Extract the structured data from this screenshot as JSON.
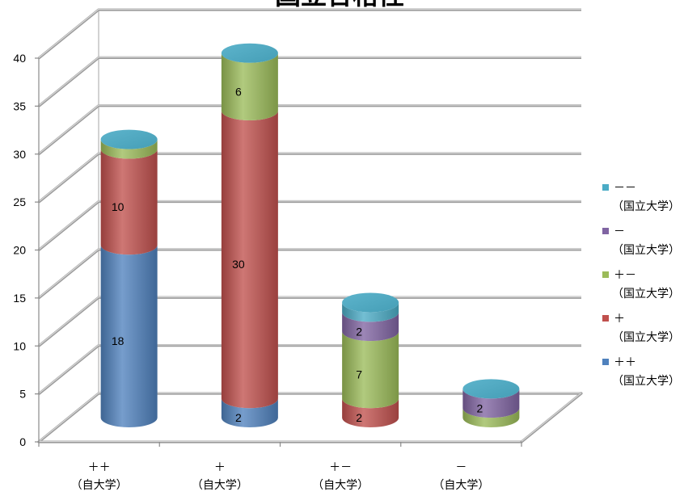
{
  "chart_data": {
    "type": "bar",
    "stacked": true,
    "title": "国立合格性",
    "categories": [
      [
        "＋＋",
        "（自大学）"
      ],
      [
        "＋",
        "（自大学）"
      ],
      [
        "＋－",
        "（自大学）"
      ],
      [
        "－",
        "（自大学）"
      ]
    ],
    "ylim": [
      0,
      40
    ],
    "yticks": [
      0,
      5,
      10,
      15,
      20,
      25,
      30,
      35,
      40
    ],
    "grid": true,
    "legend": "right",
    "series": [
      {
        "name": [
          "＋＋",
          "（国立大学）"
        ],
        "color": "#4F81BD",
        "values": [
          18,
          2,
          0,
          0
        ],
        "labels": [
          "18",
          "2",
          null,
          null
        ]
      },
      {
        "name": [
          "＋",
          "（国立大学）"
        ],
        "color": "#C0504D",
        "values": [
          10,
          30,
          2,
          0
        ],
        "labels": [
          "10",
          "30",
          "2",
          null
        ]
      },
      {
        "name": [
          "＋－",
          "（国立大学）"
        ],
        "color": "#9BBB59",
        "values": [
          1,
          6,
          7,
          1
        ],
        "labels": [
          null,
          "6",
          "7",
          null
        ]
      },
      {
        "name": [
          "－",
          "（国立大学）"
        ],
        "color": "#8064A2",
        "values": [
          0,
          0,
          2,
          2
        ],
        "labels": [
          null,
          null,
          "2",
          "2"
        ]
      },
      {
        "name": [
          "－－",
          "（国立大学）"
        ],
        "color": "#4BACC6",
        "values": [
          0,
          0,
          1,
          0
        ],
        "labels": [
          null,
          null,
          null,
          null
        ]
      }
    ]
  }
}
